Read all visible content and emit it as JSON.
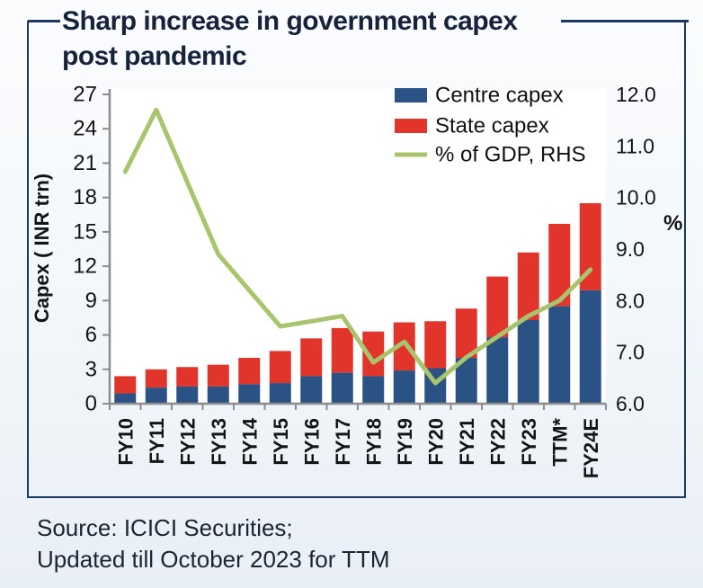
{
  "title": {
    "line1": "Sharp increase in government capex",
    "line2": "post pandemic"
  },
  "chart_data": {
    "type": "bar",
    "subtype": "stacked-bar-with-line",
    "categories": [
      "FY10",
      "FY11",
      "FY12",
      "FY13",
      "FY14",
      "FY15",
      "FY16",
      "FY17",
      "FY18",
      "FY19",
      "FY20",
      "FY21",
      "FY22",
      "FY23",
      "TTM*",
      "FY24E"
    ],
    "series": [
      {
        "name": "Centre capex",
        "type": "bar",
        "stack": "capex",
        "axis": "left",
        "color": "#2a5284",
        "values": [
          0.9,
          1.4,
          1.5,
          1.5,
          1.7,
          1.8,
          2.4,
          2.7,
          2.4,
          2.9,
          3.1,
          4.0,
          5.8,
          7.3,
          8.5,
          9.9
        ]
      },
      {
        "name": "State capex",
        "type": "bar",
        "stack": "capex",
        "axis": "left",
        "color": "#e1342a",
        "values": [
          1.5,
          1.6,
          1.7,
          1.9,
          2.3,
          2.8,
          3.3,
          3.9,
          3.9,
          4.2,
          4.1,
          4.3,
          5.3,
          5.9,
          7.2,
          7.6
        ]
      },
      {
        "name": "% of GDP, RHS",
        "type": "line",
        "axis": "right",
        "color": "#a8c56e",
        "values": [
          10.5,
          11.7,
          10.3,
          8.9,
          8.2,
          7.5,
          7.6,
          7.7,
          6.8,
          7.2,
          6.4,
          6.9,
          7.3,
          7.7,
          8.0,
          8.6
        ]
      }
    ],
    "left_axis": {
      "label": "Capex ( INR trn)",
      "min": 0,
      "max": 27,
      "ticks": [
        "0",
        "3",
        "6",
        "9",
        "12",
        "15",
        "18",
        "21",
        "24",
        "27"
      ]
    },
    "right_axis": {
      "label": "%",
      "min": 6.0,
      "max": 12.0,
      "ticks": [
        "6.0",
        "7.0",
        "8.0",
        "9.0",
        "10.0",
        "11.0",
        "12.0"
      ]
    },
    "legend_position": "top-right",
    "grid": false
  },
  "footer": {
    "line1": "Source: ICICI Securities;",
    "line2": "Updated till October 2023 for TTM"
  },
  "colors": {
    "centre_bar": "#2a5284",
    "state_bar": "#e1342a",
    "gdp_line": "#a8c56e",
    "frame_border": "#1c3a5f",
    "title_text": "#16233c",
    "axis_gray": "#8c8c8c",
    "tick_text": "#141414"
  }
}
